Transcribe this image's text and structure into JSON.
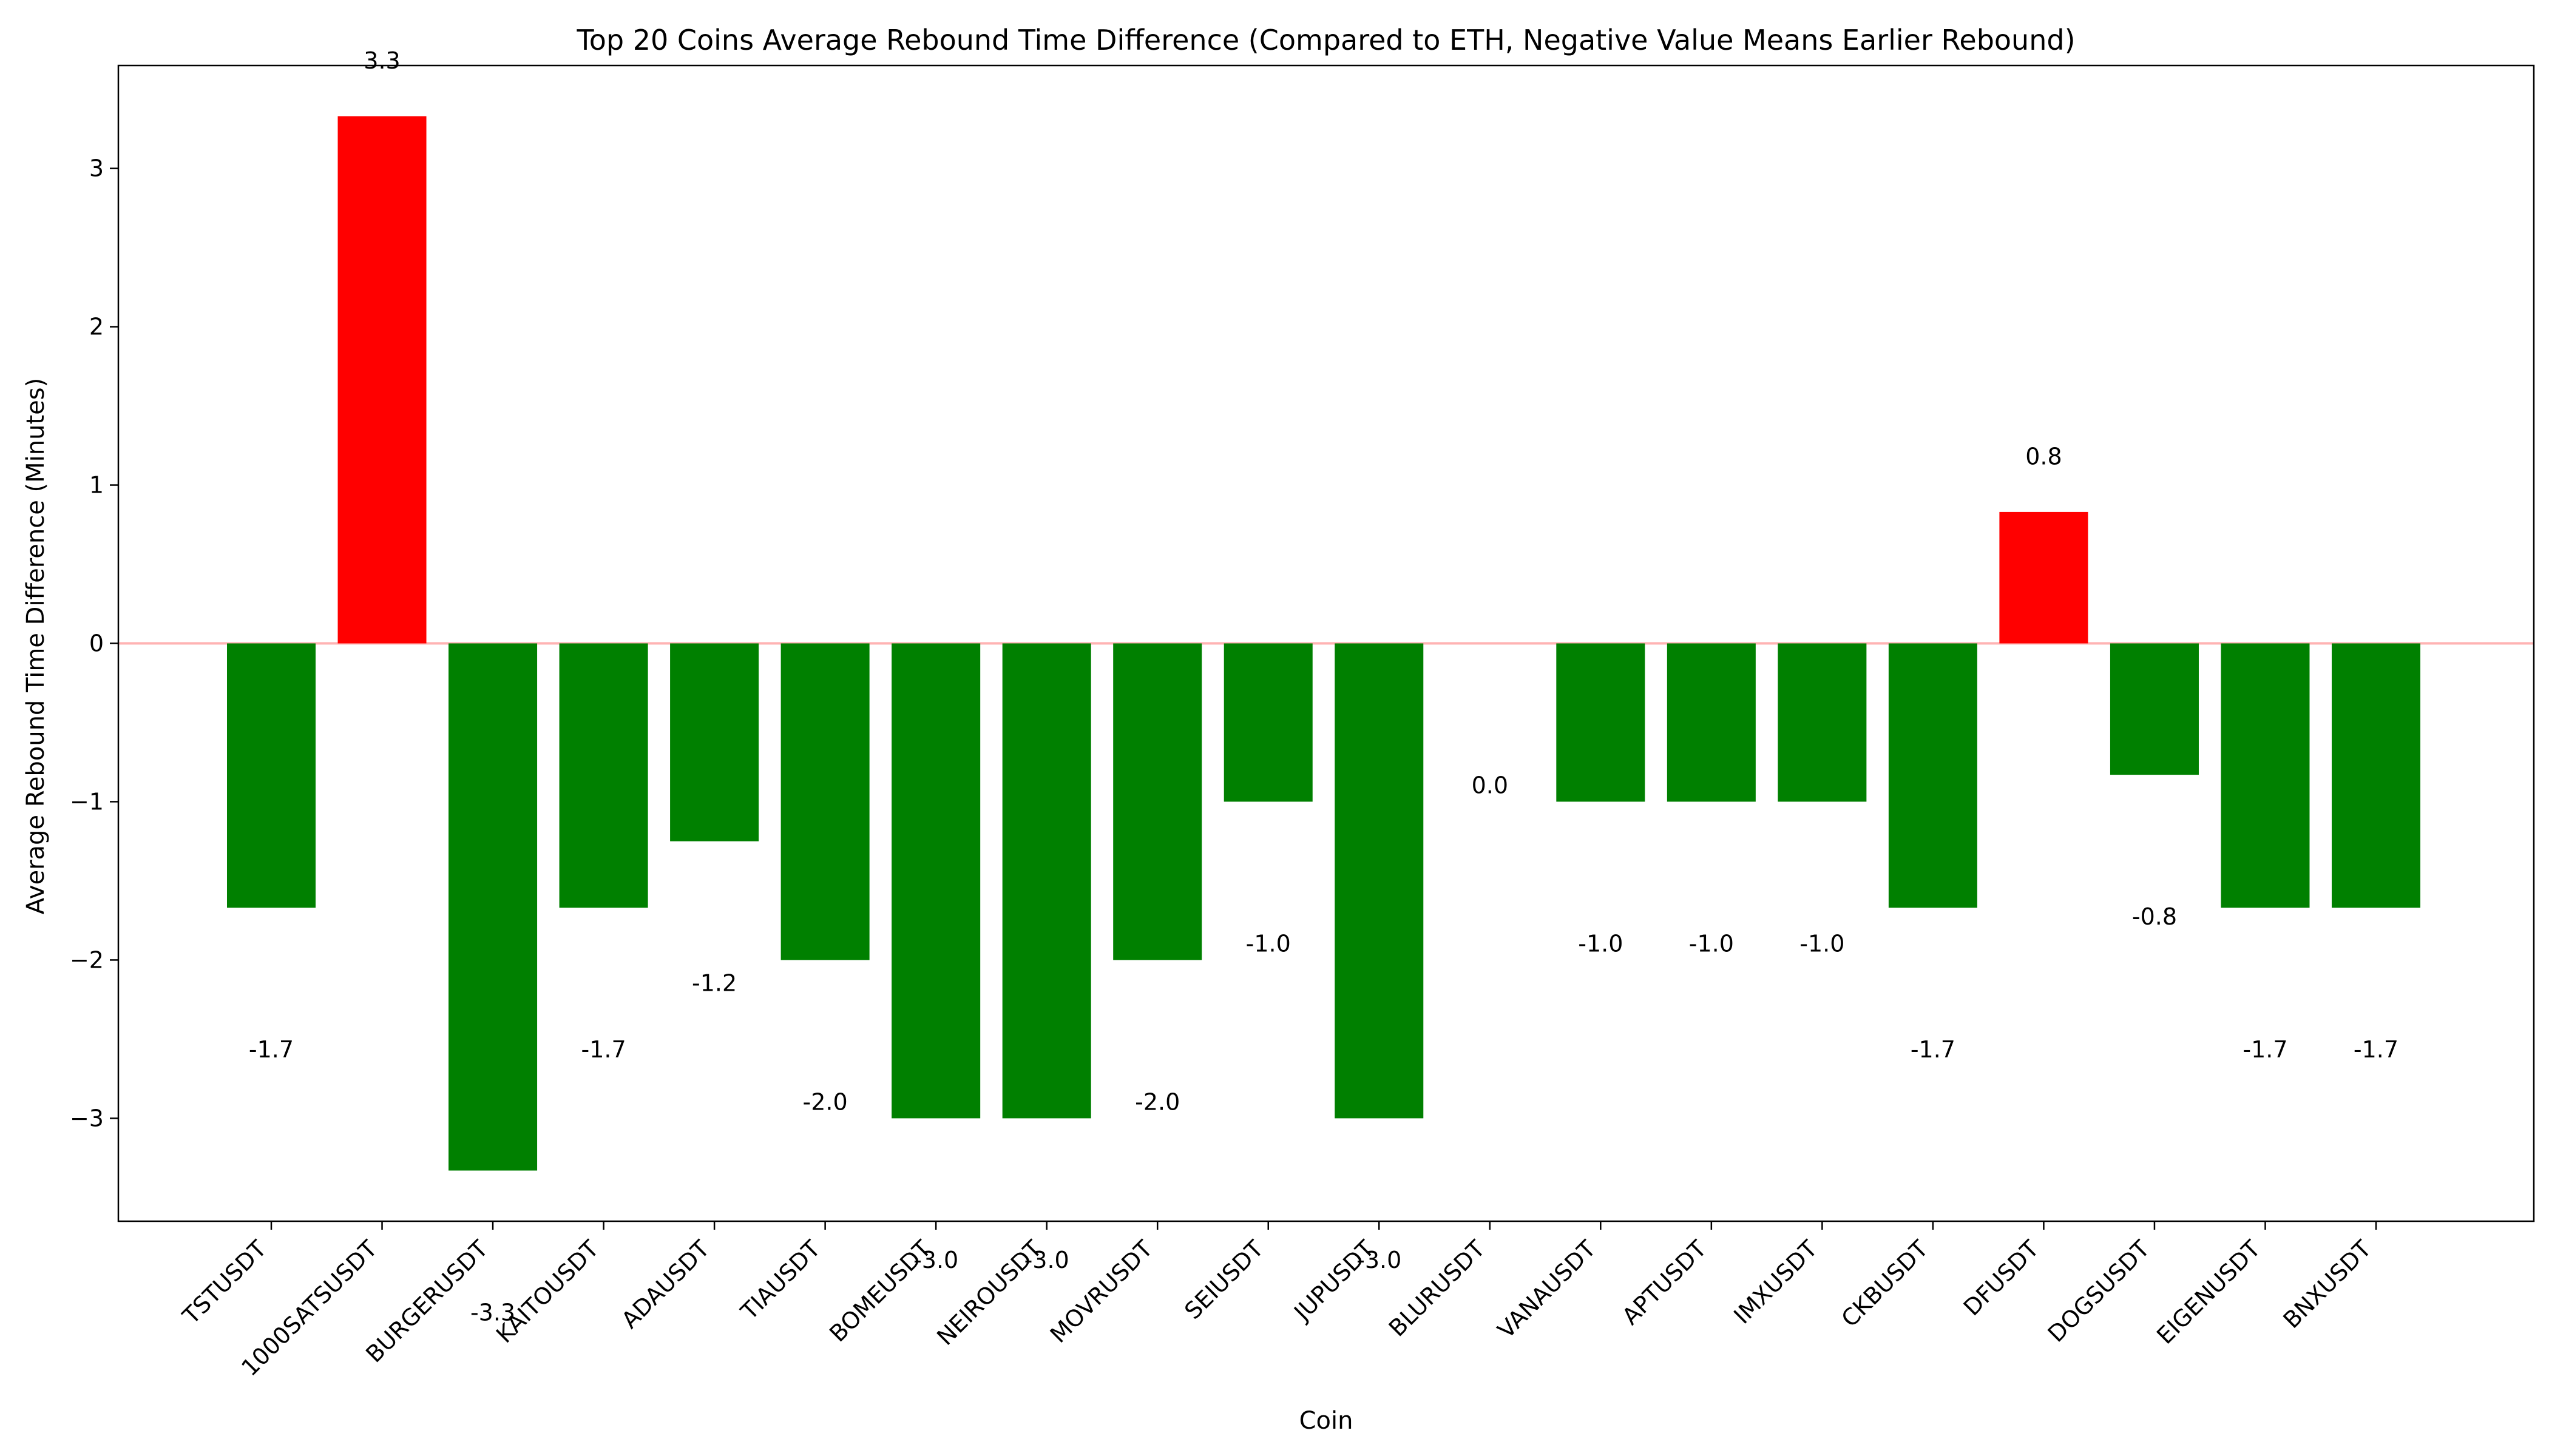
{
  "chart_data": {
    "type": "bar",
    "title": "Top 20 Coins Average Rebound Time Difference (Compared to ETH, Negative Value Means Earlier Rebound)",
    "xlabel": "Coin",
    "ylabel": "Average Rebound Time Difference (Minutes)",
    "ylim": [
      -3.65,
      3.65
    ],
    "yticks": [
      -3,
      -2,
      -1,
      0,
      1,
      2,
      3
    ],
    "ytick_labels": [
      "−3",
      "−2",
      "−1",
      "0",
      "1",
      "2",
      "3"
    ],
    "grid": false,
    "baseline": 0,
    "baseline_color": "#ffb3b3",
    "positive_color": "#ff0000",
    "negative_color": "#008000",
    "categories": [
      "TSTUSDT",
      "1000SATSUSDT",
      "BURGERUSDT",
      "KAITOUSDT",
      "ADAUSDT",
      "TIAUSDT",
      "BOMEUSDT",
      "NEIROUSDT",
      "MOVRUSDT",
      "SEIUSDT",
      "JUPUSDT",
      "BLURUSDT",
      "VANAUSDT",
      "APTUSDT",
      "IMXUSDT",
      "CKBUSDT",
      "DFUSDT",
      "DOGSUSDT",
      "EIGENUSDT",
      "BNXUSDT"
    ],
    "values": [
      -1.67,
      3.33,
      -3.33,
      -1.67,
      -1.25,
      -2.0,
      -3.0,
      -3.0,
      -2.0,
      -1.0,
      -3.0,
      0.0,
      -1.0,
      -1.0,
      -1.0,
      -1.67,
      0.83,
      -0.83,
      -1.67,
      -1.67
    ],
    "data_labels": [
      "-1.7",
      "3.3",
      "-3.3",
      "-1.7",
      "-1.2",
      "-2.0",
      "-3.0",
      "-3.0",
      "-2.0",
      "-1.0",
      "-3.0",
      "0.0",
      "-1.0",
      "-1.0",
      "-1.0",
      "-1.7",
      "0.8",
      "-0.8",
      "-1.7",
      "-1.7"
    ]
  }
}
